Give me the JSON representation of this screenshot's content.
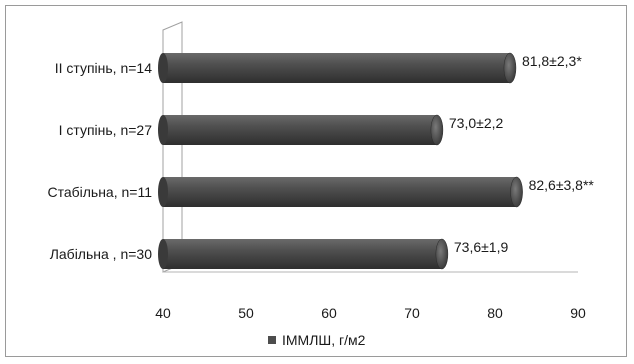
{
  "chart_data": {
    "type": "bar",
    "orientation": "horizontal",
    "categories": [
      "ІІ ступінь, n=14",
      "І ступінь, n=27",
      "Стабільна, n=11",
      "Лабільна , n=30"
    ],
    "series": [
      {
        "name": "ІММЛШ, г/м2",
        "values": [
          81.8,
          73.0,
          82.6,
          73.6
        ],
        "labels": [
          "81,8±2,3*",
          "73,0±2,2",
          "82,6±3,8**",
          "73,6±1,9"
        ]
      }
    ],
    "xlim": [
      40,
      90
    ],
    "xticks": [
      "40",
      "50",
      "60",
      "70",
      "80",
      "90"
    ],
    "legend_position": "bottom",
    "bar_color": "#4d4d4d",
    "grid": false,
    "title": "",
    "xlabel": "",
    "ylabel": ""
  }
}
